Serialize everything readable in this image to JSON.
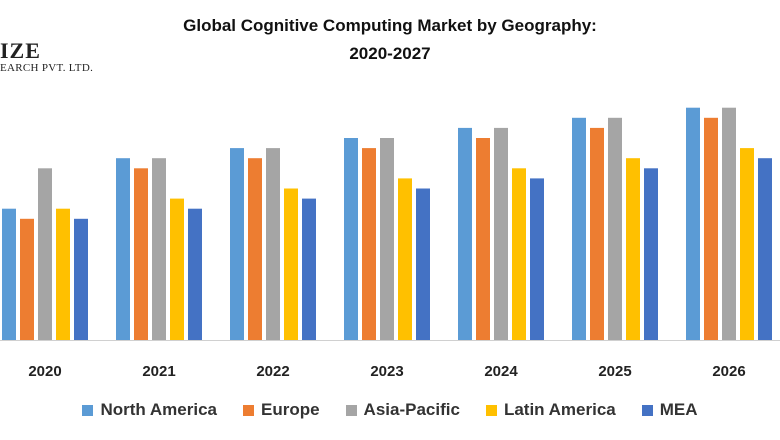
{
  "chart_data": {
    "type": "bar",
    "title_line1": "Global Cognitive Computing Market by Geography:",
    "title_line2": "2020-2027",
    "categories": [
      "2020",
      "2021",
      "2022",
      "2023",
      "2024",
      "2025",
      "2026"
    ],
    "series": [
      {
        "name": "North America",
        "color": "#5B9BD5",
        "values": [
          13,
          18,
          19,
          20,
          21,
          22,
          23
        ]
      },
      {
        "name": "Europe",
        "color": "#ED7D31",
        "values": [
          12,
          17,
          18,
          19,
          20,
          21,
          22
        ]
      },
      {
        "name": "Asia-Pacific",
        "color": "#A5A5A5",
        "values": [
          17,
          18,
          19,
          20,
          21,
          22,
          23
        ]
      },
      {
        "name": "Latin America",
        "color": "#FFC000",
        "values": [
          13,
          14,
          15,
          16,
          17,
          18,
          19
        ]
      },
      {
        "name": "MEA",
        "color": "#4472C4",
        "values": [
          12,
          13,
          14,
          15,
          16,
          17,
          18
        ]
      }
    ],
    "xlabel": "",
    "ylabel": "",
    "ylim": [
      0,
      24
    ],
    "grid": false,
    "legend_position": "bottom"
  },
  "watermark": {
    "line1": "IZE",
    "line2": "EARCH PVT. LTD."
  }
}
